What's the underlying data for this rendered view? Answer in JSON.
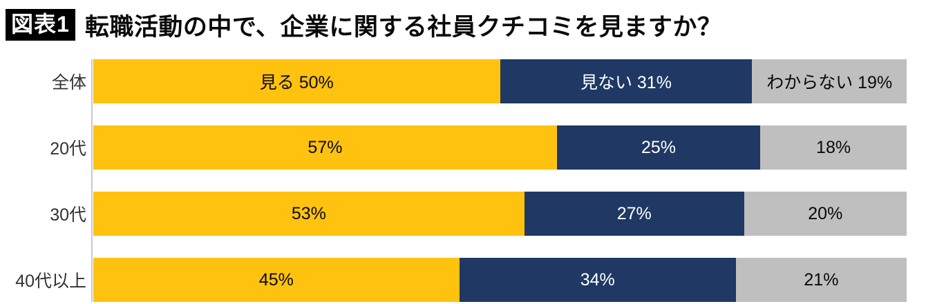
{
  "header": {
    "badge": "図表1",
    "title": "転職活動の中で、企業に関する社員クチコミを見ますか？"
  },
  "chart_data": {
    "type": "bar",
    "orientation": "horizontal-stacked",
    "title": "転職活動の中で、企業に関する社員クチコミを見ますか？",
    "xlabel": "",
    "ylabel": "",
    "xlim": [
      0,
      100
    ],
    "unit": "%",
    "grid": false,
    "legend_position": "inline-first-row",
    "categories": [
      "全体",
      "20代",
      "30代",
      "40代以上"
    ],
    "series": [
      {
        "name": "見る",
        "color": "#FFC20E",
        "values": [
          50,
          57,
          53,
          45
        ]
      },
      {
        "name": "見ない",
        "color": "#1F3864",
        "values": [
          31,
          25,
          27,
          34
        ]
      },
      {
        "name": "わからない",
        "color": "#BFBFBF",
        "values": [
          19,
          18,
          20,
          21
        ]
      }
    ],
    "rows": [
      {
        "label": "全体",
        "segments": [
          {
            "text": "見る 50%",
            "value": 50
          },
          {
            "text": "見ない 31%",
            "value": 31
          },
          {
            "text": "わからない 19%",
            "value": 19
          }
        ]
      },
      {
        "label": "20代",
        "segments": [
          {
            "text": "57%",
            "value": 57
          },
          {
            "text": "25%",
            "value": 25
          },
          {
            "text": "18%",
            "value": 18
          }
        ]
      },
      {
        "label": "30代",
        "segments": [
          {
            "text": "53%",
            "value": 53
          },
          {
            "text": "27%",
            "value": 27
          },
          {
            "text": "20%",
            "value": 20
          }
        ]
      },
      {
        "label": "40代以上",
        "segments": [
          {
            "text": "45%",
            "value": 45
          },
          {
            "text": "34%",
            "value": 34
          },
          {
            "text": "21%",
            "value": 21
          }
        ]
      }
    ]
  }
}
